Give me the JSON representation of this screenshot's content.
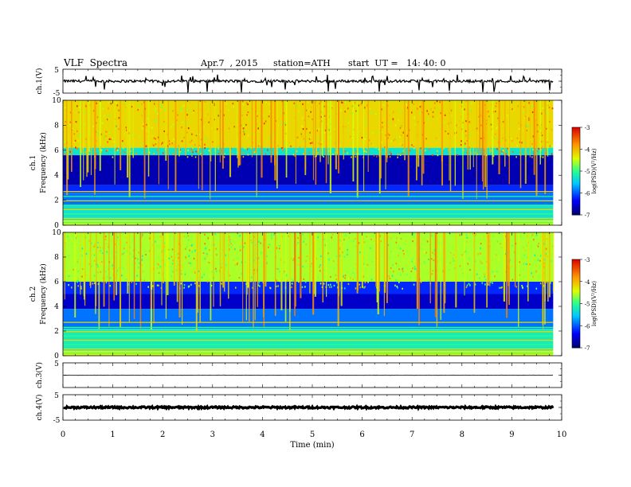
{
  "header": {
    "title": "VLF  Spectra",
    "date": "Apr.7  , 2015",
    "station": "station=ATH",
    "start": "start  UT =   14: 40: 0"
  },
  "chart_data": [
    {
      "type": "line",
      "title": "",
      "ylabel": "ch.1(V)",
      "xlim": [
        0,
        10
      ],
      "ylim": [
        -5,
        5
      ],
      "yticks": [
        "5",
        "-5"
      ],
      "x_data_extent": [
        0,
        9.83
      ],
      "series": [
        {
          "color": "#000000",
          "mean": 0,
          "description_values": "noisy waveform ~ -1 to +1 V with spikes to -5"
        }
      ]
    },
    {
      "type": "heatmap",
      "ylabel_channel": "ch.1",
      "ylabel": "Frequency  (kHz)",
      "xlim": [
        0,
        10
      ],
      "ylim": [
        0,
        10
      ],
      "yticks": [
        "0",
        "2",
        "4",
        "6",
        "8",
        "10"
      ],
      "colorbar": {
        "label": "log(PSD)(V²/Hz)",
        "range": [
          -7,
          -3
        ],
        "ticks": [
          "-3",
          "-4",
          "-5",
          "-6",
          "-7"
        ]
      },
      "bands_khz": [
        {
          "from": 6.2,
          "to": 10,
          "level": -4.2
        },
        {
          "from": 5.6,
          "to": 6.2,
          "level": -5.3
        },
        {
          "from": 3.2,
          "to": 5.6,
          "level": -6.7
        },
        {
          "from": 2.6,
          "to": 3.2,
          "level": -6.2
        },
        {
          "from": 1.6,
          "to": 2.6,
          "level": -5.9
        },
        {
          "from": 0.4,
          "to": 1.6,
          "level": -5.3
        },
        {
          "from": 0,
          "to": 0.4,
          "level": -4.5
        }
      ]
    },
    {
      "type": "heatmap",
      "ylabel_channel": "ch.2",
      "ylabel": "Frequency  (kHz)",
      "xlim": [
        0,
        10
      ],
      "ylim": [
        0,
        10
      ],
      "yticks": [
        "0",
        "2",
        "4",
        "6",
        "8",
        "10"
      ],
      "colorbar": {
        "label": "log(PSD)(V²/Hz)",
        "range": [
          -7,
          -3
        ],
        "ticks": [
          "-3",
          "-4",
          "-5",
          "-6",
          "-7"
        ]
      },
      "bands_khz": [
        {
          "from": 6.0,
          "to": 10,
          "level": -4.6
        },
        {
          "from": 5.0,
          "to": 6.0,
          "level": -6.2
        },
        {
          "from": 3.8,
          "to": 5.0,
          "level": -6.6
        },
        {
          "from": 2.2,
          "to": 3.8,
          "level": -5.9
        },
        {
          "from": 0.4,
          "to": 2.2,
          "level": -5.2
        },
        {
          "from": 0,
          "to": 0.4,
          "level": -4.4
        }
      ]
    },
    {
      "type": "line",
      "ylabel": "ch.3(V)",
      "xlim": [
        0,
        10
      ],
      "ylim": [
        -5,
        5
      ],
      "yticks": [
        "5"
      ],
      "x_data_extent": [
        0,
        9.83
      ],
      "series": [
        {
          "color": "#000000",
          "mean": 0
        }
      ]
    },
    {
      "type": "line",
      "ylabel": "ch.4(V)",
      "xlim": [
        0,
        10
      ],
      "ylim": [
        -5,
        5
      ],
      "yticks": [
        "5",
        "-5"
      ],
      "x_data_extent": [
        0,
        9.83
      ],
      "series": [
        {
          "color": "#000000",
          "mean": 0
        }
      ]
    }
  ],
  "xaxis": {
    "label": "Time  (min)",
    "ticks": [
      "0",
      "1",
      "2",
      "3",
      "4",
      "5",
      "6",
      "7",
      "8",
      "9",
      "10"
    ]
  }
}
